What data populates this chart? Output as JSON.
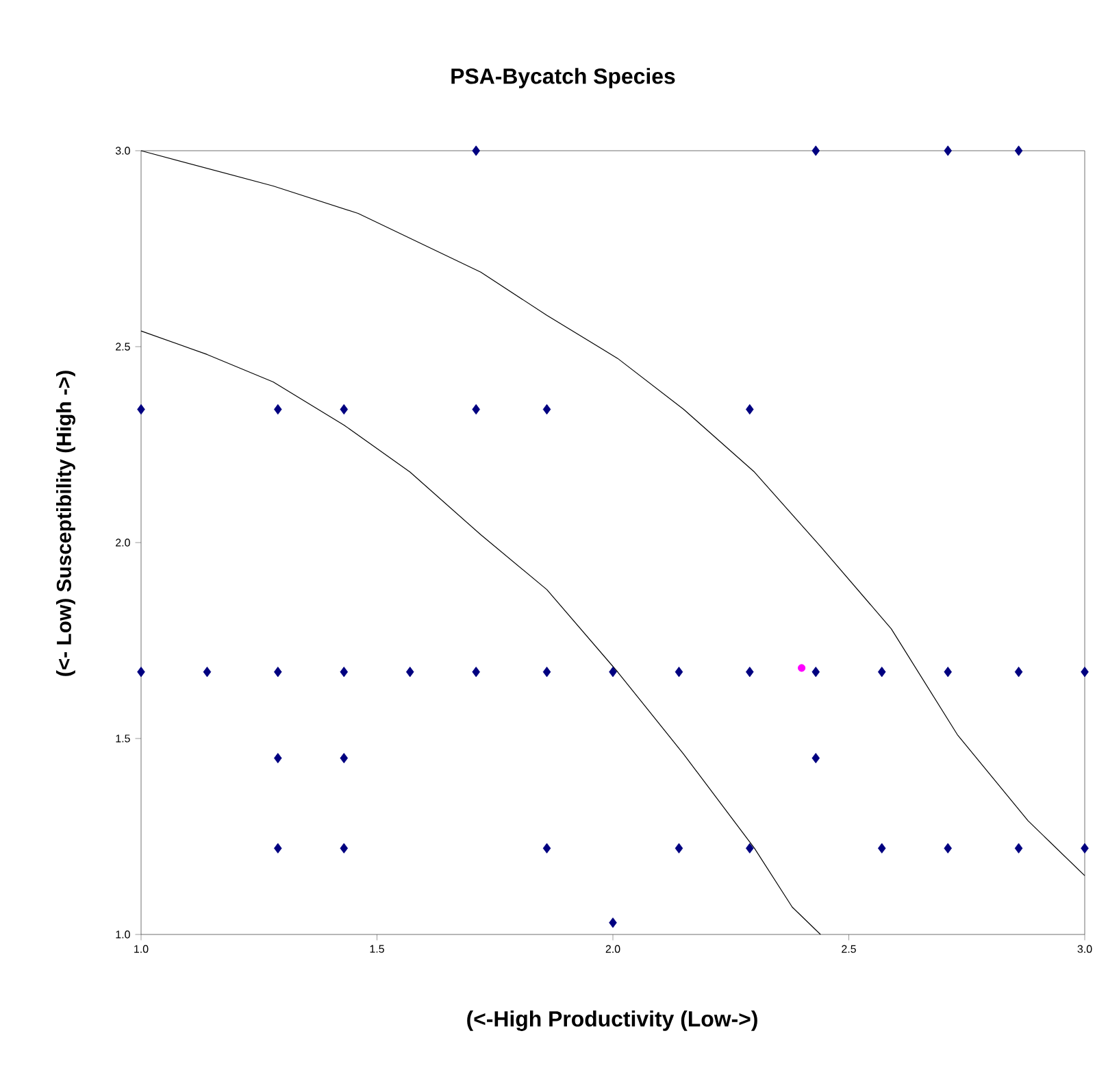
{
  "chart_data": {
    "type": "scatter",
    "title": "PSA-Bycatch Species",
    "xlabel": "(<-High Productivity (Low->)",
    "ylabel": "(<- Low) Susceptibility (High ->)",
    "xlim": [
      1,
      3
    ],
    "ylim": [
      1,
      3
    ],
    "xticks": [
      {
        "value": 1,
        "label": "1.0"
      },
      {
        "value": 1.5,
        "label": "1.5"
      },
      {
        "value": 2,
        "label": "2.0"
      },
      {
        "value": 2.5,
        "label": "2.5"
      },
      {
        "value": 3,
        "label": "3.0"
      }
    ],
    "yticks": [
      {
        "value": 1,
        "label": "1.0"
      },
      {
        "value": 1.5,
        "label": "1.5"
      },
      {
        "value": 2,
        "label": "2.0"
      },
      {
        "value": 2.5,
        "label": "2.5"
      },
      {
        "value": 3,
        "label": "3.0"
      }
    ],
    "grid": false,
    "marker": "diamond",
    "series": [
      {
        "type": "line",
        "color": "#000000",
        "marker": "none",
        "x": [
          1.0,
          1.28,
          1.46,
          1.72,
          1.86,
          2.01,
          2.15,
          2.3,
          2.44,
          2.59,
          2.73,
          2.88,
          3.0
        ],
        "values": [
          3.0,
          2.91,
          2.84,
          2.69,
          2.58,
          2.47,
          2.34,
          2.18,
          1.99,
          1.78,
          1.51,
          1.29,
          1.15
        ]
      },
      {
        "type": "line",
        "color": "#000000",
        "marker": "none",
        "x": [
          1.0,
          1.14,
          1.28,
          1.43,
          1.57,
          1.72,
          1.86,
          2.01,
          2.15,
          2.3,
          2.38,
          2.44
        ],
        "values": [
          2.54,
          2.48,
          2.41,
          2.3,
          2.18,
          2.02,
          1.88,
          1.67,
          1.46,
          1.22,
          1.07,
          1.0
        ]
      },
      {
        "color": "#000080",
        "x": [
          1.71,
          2.43,
          2.71,
          2.86,
          1.0,
          1.29,
          1.43,
          1.71,
          1.86,
          2.29,
          1.0,
          1.14,
          1.29,
          1.43,
          1.57,
          1.71,
          1.86,
          2.0,
          2.14,
          2.29,
          2.43,
          2.57,
          2.71,
          2.86,
          3.0,
          1.29,
          1.43,
          2.43,
          1.29,
          1.43,
          1.86,
          2.14,
          2.29,
          2.57,
          2.71,
          2.86,
          3.0,
          2.0
        ],
        "values": [
          3.0,
          3.0,
          3.0,
          3.0,
          2.34,
          2.34,
          2.34,
          2.34,
          2.34,
          2.34,
          1.67,
          1.67,
          1.67,
          1.67,
          1.67,
          1.67,
          1.67,
          1.67,
          1.67,
          1.67,
          1.67,
          1.67,
          1.67,
          1.67,
          1.67,
          1.45,
          1.45,
          1.45,
          1.22,
          1.22,
          1.22,
          1.22,
          1.22,
          1.22,
          1.22,
          1.22,
          1.22,
          1.03
        ]
      },
      {
        "color": "#ff00ff",
        "marker": "circle",
        "x": [
          2.4
        ],
        "values": [
          1.68
        ]
      }
    ]
  }
}
